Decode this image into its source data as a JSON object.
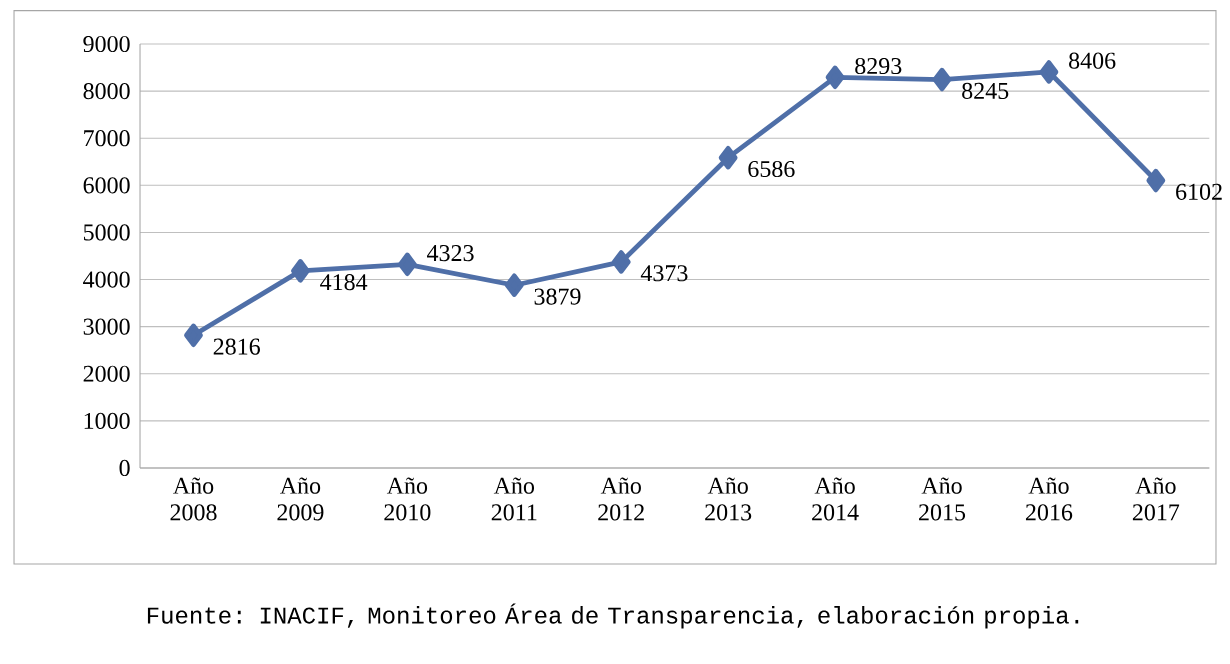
{
  "chart_data": {
    "type": "line",
    "categories": [
      "Año 2008",
      "Año 2009",
      "Año 2010",
      "Año 2011",
      "Año 2012",
      "Año 2013",
      "Año 2014",
      "Año 2015",
      "Año 2016",
      "Año 2017"
    ],
    "values": [
      2816,
      4184,
      4323,
      3879,
      4373,
      6586,
      8293,
      8245,
      8406,
      6102
    ],
    "color": "#4f6fa8",
    "ylim": [
      0,
      9000
    ],
    "yticks": [
      0,
      1000,
      2000,
      3000,
      4000,
      5000,
      6000,
      7000,
      8000,
      9000
    ],
    "grid": "y",
    "marker": "diamond",
    "data_labels": true,
    "annotations": [
      "Fuente: INACIF, Monitoreo Área de Transparencia, elaboración propia."
    ]
  }
}
